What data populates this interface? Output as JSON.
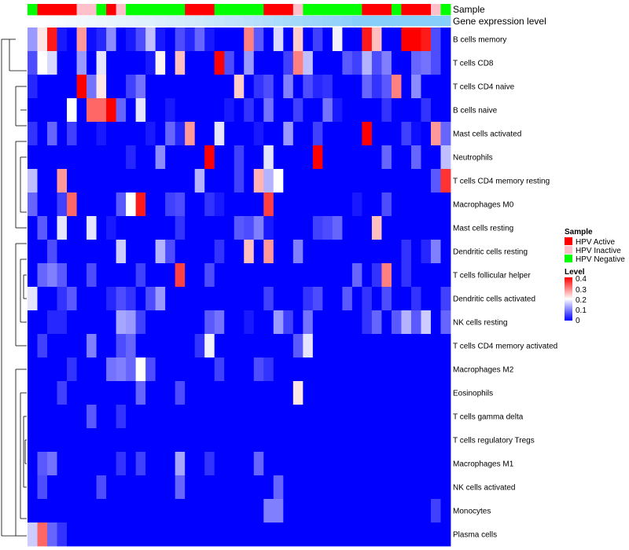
{
  "chart_data": {
    "type": "heatmap",
    "title": "",
    "annotations": [
      {
        "name": "Sample",
        "type": "categorical",
        "colors": {
          "HPV Active": "#ff0000",
          "HPV Inactive": "#ffc0cb",
          "HPV Negative": "#00ff00"
        },
        "values": [
          "N",
          "A",
          "A",
          "A",
          "A",
          "I",
          "I",
          "N",
          "A",
          "I",
          "N",
          "N",
          "N",
          "N",
          "N",
          "N",
          "A",
          "A",
          "A",
          "N",
          "N",
          "N",
          "N",
          "N",
          "A",
          "A",
          "A",
          "I",
          "N",
          "N",
          "N",
          "N",
          "N",
          "N",
          "A",
          "A",
          "A",
          "N",
          "A",
          "A",
          "A",
          "I",
          "N"
        ]
      },
      {
        "name": "Gene expression level",
        "type": "gradient",
        "colors": [
          "#ffffff",
          "#cfe9fb",
          "#87cefa"
        ],
        "values": [
          0,
          0.02,
          0.05,
          0.08,
          0.11,
          0.14,
          0.17,
          0.2,
          0.23,
          0.26,
          0.29,
          0.32,
          0.35,
          0.38,
          0.41,
          0.44,
          0.47,
          0.5,
          0.53,
          0.56,
          0.59,
          0.62,
          0.65,
          0.68,
          0.71,
          0.74,
          0.77,
          0.8,
          0.83,
          0.86,
          0.89,
          0.92,
          0.95,
          1,
          1,
          1,
          1,
          1,
          1,
          1,
          1,
          1,
          1
        ]
      }
    ],
    "row_labels": [
      "B cells memory",
      "T cells CD8",
      "T cells CD4 naive",
      "B cells naive",
      "Mast cells activated",
      "Neutrophils",
      "T cells CD4 memory resting",
      "Macrophages M0",
      "Mast cells resting",
      "Dendritic cells resting",
      "T cells follicular helper",
      "Dendritic cells activated",
      "NK cells resting",
      "T cells CD4 memory activated",
      "Macrophages M2",
      "Eosinophils",
      "T cells gamma delta",
      "T cells regulatory  Tregs",
      "Macrophages M1",
      "NK cells activated",
      "Monocytes",
      "Plasma cells"
    ],
    "ncols": 43,
    "values": [
      [
        0.12,
        0.22,
        0.38,
        0.02,
        0.0,
        0.28,
        0.01,
        0.03,
        0.11,
        0.0,
        0.02,
        0.06,
        0.15,
        0.02,
        0.0,
        0.06,
        0.03,
        0.08,
        0.02,
        0.0,
        0.0,
        0.0,
        0.3,
        0.07,
        0.0,
        0.17,
        0.0,
        0.24,
        0.0,
        0.05,
        0.0,
        0.19,
        0.0,
        0.0,
        0.38,
        0.25,
        0.0,
        0.0,
        0.41,
        0.41,
        0.38,
        0.06,
        0.0
      ],
      [
        0.06,
        0.2,
        0.17,
        0.0,
        0.0,
        0.12,
        0.0,
        0.18,
        0.0,
        0.0,
        0.0,
        0.0,
        0.02,
        0.21,
        0.0,
        0.25,
        0.0,
        0.0,
        0.0,
        0.4,
        0.06,
        0.0,
        0.12,
        0.0,
        0.0,
        0.0,
        0.05,
        0.3,
        0.15,
        0.0,
        0.0,
        0.0,
        0.07,
        0.05,
        0.14,
        0.06,
        0.1,
        0.0,
        0.0,
        0.08,
        0.09,
        0.06,
        0.0
      ],
      [
        0.03,
        0.0,
        0.0,
        0.0,
        0.0,
        0.4,
        0.09,
        0.22,
        0.0,
        0.0,
        0.05,
        0.09,
        0.0,
        0.0,
        0.0,
        0.0,
        0.0,
        0.0,
        0.0,
        0.0,
        0.0,
        0.24,
        0.0,
        0.04,
        0.06,
        0.0,
        0.1,
        0.0,
        0.06,
        0.03,
        0.04,
        0.0,
        0.0,
        0.0,
        0.08,
        0.04,
        0.07,
        0.3,
        0.0,
        0.11,
        0.0,
        0.0,
        0.0
      ],
      [
        0.0,
        0.0,
        0.0,
        0.0,
        0.2,
        0.0,
        0.32,
        0.32,
        0.4,
        0.08,
        0.0,
        0.18,
        0.0,
        0.0,
        0.02,
        0.0,
        0.0,
        0.0,
        0.0,
        0.0,
        0.02,
        0.0,
        0.04,
        0.0,
        0.09,
        0.0,
        0.0,
        0.05,
        0.0,
        0.0,
        0.09,
        0.02,
        0.0,
        0.0,
        0.0,
        0.0,
        0.04,
        0.0,
        0.0,
        0.0,
        0.04,
        0.0,
        0.0
      ],
      [
        0.04,
        0.0,
        0.08,
        0.0,
        0.05,
        0.0,
        0.0,
        0.02,
        0.0,
        0.0,
        0.0,
        0.0,
        0.02,
        0.0,
        0.08,
        0.03,
        0.28,
        0.0,
        0.0,
        0.18,
        0.0,
        0.0,
        0.0,
        0.02,
        0.0,
        0.0,
        0.12,
        0.0,
        0.0,
        0.05,
        0.0,
        0.0,
        0.0,
        0.0,
        0.45,
        0.0,
        0.0,
        0.0,
        0.05,
        0.01,
        0.0,
        0.28,
        0.08
      ],
      [
        0.0,
        0.0,
        0.0,
        0.0,
        0.0,
        0.0,
        0.0,
        0.0,
        0.0,
        0.0,
        0.03,
        0.0,
        0.0,
        0.11,
        0.0,
        0.0,
        0.0,
        0.0,
        0.45,
        0.0,
        0.0,
        0.05,
        0.0,
        0.0,
        0.18,
        0.0,
        0.0,
        0.0,
        0.0,
        0.45,
        0.0,
        0.0,
        0.0,
        0.0,
        0.0,
        0.0,
        0.08,
        0.0,
        0.0,
        0.08,
        0.0,
        0.0,
        0.15
      ],
      [
        0.15,
        0.0,
        0.0,
        0.28,
        0.0,
        0.0,
        0.0,
        0.0,
        0.0,
        0.0,
        0.0,
        0.0,
        0.0,
        0.0,
        0.0,
        0.0,
        0.0,
        0.14,
        0.0,
        0.0,
        0.0,
        0.05,
        0.0,
        0.26,
        0.14,
        0.2,
        0.0,
        0.0,
        0.0,
        0.0,
        0.0,
        0.0,
        0.0,
        0.0,
        0.0,
        0.0,
        0.0,
        0.0,
        0.0,
        0.0,
        0.0,
        0.07,
        0.36
      ],
      [
        0.08,
        0.0,
        0.0,
        0.05,
        0.32,
        0.0,
        0.0,
        0.0,
        0.0,
        0.07,
        0.2,
        0.38,
        0.0,
        0.0,
        0.05,
        0.06,
        0.0,
        0.0,
        0.04,
        0.02,
        0.0,
        0.0,
        0.0,
        0.0,
        0.35,
        0.0,
        0.0,
        0.0,
        0.0,
        0.0,
        0.0,
        0.0,
        0.0,
        0.02,
        0.0,
        0.0,
        0.06,
        0.0,
        0.0,
        0.0,
        0.0,
        0.0,
        0.0
      ],
      [
        0.0,
        0.07,
        0.0,
        0.18,
        0.0,
        0.0,
        0.18,
        0.0,
        0.02,
        0.0,
        0.0,
        0.0,
        0.0,
        0.0,
        0.0,
        0.04,
        0.0,
        0.0,
        0.0,
        0.0,
        0.0,
        0.07,
        0.06,
        0.1,
        0.02,
        0.0,
        0.0,
        0.0,
        0.0,
        0.05,
        0.06,
        0.08,
        0.0,
        0.0,
        0.0,
        0.25,
        0.0,
        0.0,
        0.0,
        0.0,
        0.0,
        0.0,
        0.0
      ],
      [
        0.0,
        0.0,
        0.06,
        0.0,
        0.0,
        0.0,
        0.0,
        0.0,
        0.0,
        0.16,
        0.0,
        0.0,
        0.0,
        0.14,
        0.06,
        0.0,
        0.0,
        0.0,
        0.0,
        0.04,
        0.0,
        0.0,
        0.25,
        0.0,
        0.28,
        0.0,
        0.0,
        0.1,
        0.0,
        0.0,
        0.0,
        0.0,
        0.0,
        0.0,
        0.0,
        0.0,
        0.0,
        0.0,
        0.04,
        0.0,
        0.03,
        0.1,
        0.0
      ],
      [
        0.0,
        0.08,
        0.1,
        0.07,
        0.0,
        0.0,
        0.06,
        0.0,
        0.0,
        0.0,
        0.0,
        0.05,
        0.0,
        0.0,
        0.0,
        0.35,
        0.0,
        0.0,
        0.06,
        0.0,
        0.0,
        0.0,
        0.0,
        0.0,
        0.0,
        0.0,
        0.0,
        0.0,
        0.0,
        0.0,
        0.0,
        0.0,
        0.0,
        0.08,
        0.0,
        0.04,
        0.3,
        0.0,
        0.04,
        0.0,
        0.0,
        0.0,
        0.0
      ],
      [
        0.18,
        0.0,
        0.0,
        0.04,
        0.07,
        0.0,
        0.0,
        0.0,
        0.03,
        0.06,
        0.04,
        0.0,
        0.06,
        0.12,
        0.0,
        0.0,
        0.0,
        0.0,
        0.0,
        0.0,
        0.0,
        0.0,
        0.0,
        0.0,
        0.05,
        0.0,
        0.0,
        0.0,
        0.04,
        0.06,
        0.0,
        0.0,
        0.07,
        0.0,
        0.04,
        0.0,
        0.06,
        0.0,
        0.0,
        0.04,
        0.0,
        0.0,
        0.05
      ],
      [
        0.0,
        0.0,
        0.03,
        0.03,
        0.0,
        0.0,
        0.0,
        0.0,
        0.0,
        0.13,
        0.12,
        0.05,
        0.0,
        0.0,
        0.0,
        0.0,
        0.0,
        0.0,
        0.07,
        0.09,
        0.0,
        0.0,
        0.02,
        0.0,
        0.0,
        0.12,
        0.05,
        0.0,
        0.09,
        0.0,
        0.0,
        0.0,
        0.0,
        0.0,
        0.04,
        0.08,
        0.0,
        0.07,
        0.14,
        0.07,
        0.16,
        0.0,
        0.08
      ],
      [
        0.0,
        0.05,
        0.0,
        0.0,
        0.0,
        0.0,
        0.1,
        0.0,
        0.0,
        0.06,
        0.08,
        0.0,
        0.0,
        0.0,
        0.0,
        0.0,
        0.0,
        0.04,
        0.19,
        0.0,
        0.0,
        0.0,
        0.0,
        0.0,
        0.0,
        0.0,
        0.0,
        0.07,
        0.18,
        0.0,
        0.0,
        0.0,
        0.0,
        0.0,
        0.0,
        0.0,
        0.0,
        0.0,
        0.0,
        0.0,
        0.0,
        0.0,
        0.0
      ],
      [
        0.0,
        0.0,
        0.0,
        0.0,
        0.04,
        0.0,
        0.0,
        0.0,
        0.09,
        0.1,
        0.08,
        0.2,
        0.06,
        0.0,
        0.0,
        0.0,
        0.0,
        0.0,
        0.0,
        0.05,
        0.0,
        0.0,
        0.0,
        0.06,
        0.04,
        0.0,
        0.0,
        0.0,
        0.0,
        0.0,
        0.0,
        0.0,
        0.0,
        0.0,
        0.0,
        0.0,
        0.0,
        0.0,
        0.0,
        0.0,
        0.0,
        0.0,
        0.0
      ],
      [
        0.0,
        0.0,
        0.0,
        0.05,
        0.0,
        0.0,
        0.0,
        0.0,
        0.0,
        0.0,
        0.0,
        0.08,
        0.0,
        0.0,
        0.0,
        0.06,
        0.0,
        0.0,
        0.0,
        0.0,
        0.0,
        0.0,
        0.0,
        0.0,
        0.0,
        0.0,
        0.0,
        0.22,
        0.0,
        0.0,
        0.0,
        0.0,
        0.0,
        0.0,
        0.0,
        0.0,
        0.0,
        0.0,
        0.0,
        0.0,
        0.0,
        0.0,
        0.0
      ],
      [
        0.0,
        0.0,
        0.0,
        0.0,
        0.0,
        0.0,
        0.07,
        0.0,
        0.0,
        0.04,
        0.0,
        0.0,
        0.0,
        0.0,
        0.0,
        0.0,
        0.0,
        0.0,
        0.0,
        0.0,
        0.0,
        0.0,
        0.0,
        0.0,
        0.0,
        0.0,
        0.0,
        0.0,
        0.0,
        0.0,
        0.0,
        0.0,
        0.0,
        0.0,
        0.0,
        0.0,
        0.0,
        0.0,
        0.0,
        0.0,
        0.0,
        0.0,
        0.0
      ],
      [
        0.0,
        0.0,
        0.0,
        0.0,
        0.0,
        0.0,
        0.0,
        0.0,
        0.0,
        0.0,
        0.0,
        0.0,
        0.0,
        0.0,
        0.0,
        0.0,
        0.0,
        0.0,
        0.0,
        0.0,
        0.0,
        0.0,
        0.0,
        0.0,
        0.0,
        0.0,
        0.0,
        0.0,
        0.0,
        0.0,
        0.0,
        0.0,
        0.0,
        0.0,
        0.0,
        0.0,
        0.0,
        0.0,
        0.0,
        0.0,
        0.0,
        0.0,
        0.0
      ],
      [
        0.0,
        0.07,
        0.09,
        0.0,
        0.0,
        0.0,
        0.0,
        0.0,
        0.0,
        0.04,
        0.0,
        0.05,
        0.0,
        0.0,
        0.0,
        0.13,
        0.0,
        0.0,
        0.04,
        0.0,
        0.0,
        0.0,
        0.0,
        0.08,
        0.0,
        0.0,
        0.0,
        0.0,
        0.0,
        0.0,
        0.0,
        0.0,
        0.0,
        0.0,
        0.0,
        0.0,
        0.0,
        0.0,
        0.0,
        0.0,
        0.0,
        0.0,
        0.0
      ],
      [
        0.0,
        0.06,
        0.0,
        0.0,
        0.0,
        0.0,
        0.0,
        0.06,
        0.0,
        0.0,
        0.0,
        0.0,
        0.0,
        0.0,
        0.0,
        0.08,
        0.0,
        0.0,
        0.0,
        0.0,
        0.0,
        0.0,
        0.0,
        0.0,
        0.0,
        0.08,
        0.0,
        0.0,
        0.0,
        0.0,
        0.0,
        0.0,
        0.0,
        0.0,
        0.0,
        0.0,
        0.0,
        0.0,
        0.0,
        0.0,
        0.0,
        0.0,
        0.0
      ],
      [
        0.0,
        0.0,
        0.0,
        0.0,
        0.0,
        0.0,
        0.0,
        0.0,
        0.0,
        0.0,
        0.0,
        0.0,
        0.0,
        0.0,
        0.0,
        0.0,
        0.0,
        0.0,
        0.0,
        0.0,
        0.0,
        0.0,
        0.0,
        0.0,
        0.1,
        0.1,
        0.0,
        0.0,
        0.0,
        0.0,
        0.0,
        0.0,
        0.0,
        0.0,
        0.0,
        0.0,
        0.0,
        0.0,
        0.0,
        0.0,
        0.0,
        0.05,
        0.0
      ],
      [
        0.16,
        0.32,
        0.08,
        0.04,
        0.0,
        0.0,
        0.0,
        0.0,
        0.0,
        0.0,
        0.0,
        0.0,
        0.0,
        0.0,
        0.0,
        0.0,
        0.0,
        0.0,
        0.0,
        0.0,
        0.0,
        0.0,
        0.0,
        0.0,
        0.0,
        0.0,
        0.0,
        0.0,
        0.0,
        0.0,
        0.0,
        0.0,
        0.0,
        0.0,
        0.0,
        0.0,
        0.0,
        0.0,
        0.0,
        0.0,
        0.0,
        0.0,
        0.0
      ]
    ],
    "color_scale": {
      "min": 0,
      "mid": 0.2,
      "max": 0.4,
      "colors": [
        "#0000ff",
        "#ffffff",
        "#ff0000"
      ]
    },
    "legend": {
      "sample": {
        "title": "Sample",
        "items": [
          {
            "label": "HPV Active",
            "color": "#ff0000"
          },
          {
            "label": "HPV Inactive",
            "color": "#ffc0cb"
          },
          {
            "label": "HPV Negative",
            "color": "#00ff00"
          }
        ]
      },
      "level": {
        "title": "Level",
        "ticks": [
          "0.4",
          "0.3",
          "0.2",
          "0.1",
          "0"
        ]
      }
    }
  }
}
